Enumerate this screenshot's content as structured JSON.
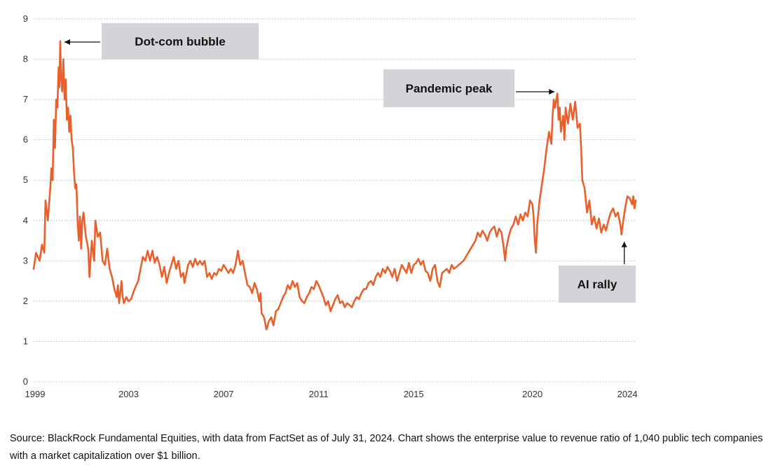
{
  "chart_data": {
    "type": "line",
    "title": "",
    "xlabel": "",
    "ylabel": "",
    "xlim": [
      1999,
      2024.35
    ],
    "ylim": [
      0,
      9
    ],
    "grid": true,
    "x_ticks": [
      1999,
      2003,
      2007,
      2011,
      2015,
      2020,
      2024
    ],
    "x_tick_labels": [
      "1999",
      "2003",
      "2007",
      "2011",
      "2015",
      "2020",
      "2024"
    ],
    "y_ticks": [
      0,
      1,
      2,
      3,
      4,
      5,
      6,
      7,
      8,
      9
    ],
    "y_tick_labels": [
      "0",
      "1",
      "2",
      "3",
      "4",
      "5",
      "6",
      "7",
      "8",
      "9"
    ],
    "color": "#e8612c",
    "series": [
      {
        "values": [
          [
            1999.0,
            2.8
          ],
          [
            1999.1,
            3.2
          ],
          [
            1999.25,
            3.0
          ],
          [
            1999.35,
            3.4
          ],
          [
            1999.45,
            3.2
          ],
          [
            1999.5,
            4.5
          ],
          [
            1999.6,
            4.0
          ],
          [
            1999.7,
            4.8
          ],
          [
            1999.75,
            5.3
          ],
          [
            1999.8,
            5.0
          ],
          [
            1999.85,
            6.5
          ],
          [
            1999.9,
            5.8
          ],
          [
            1999.95,
            7.0
          ],
          [
            2000.0,
            6.8
          ],
          [
            2000.05,
            7.8
          ],
          [
            2000.08,
            7.3
          ],
          [
            2000.12,
            8.45
          ],
          [
            2000.15,
            7.6
          ],
          [
            2000.2,
            7.2
          ],
          [
            2000.25,
            8.0
          ],
          [
            2000.3,
            7.0
          ],
          [
            2000.35,
            7.5
          ],
          [
            2000.4,
            6.5
          ],
          [
            2000.45,
            6.8
          ],
          [
            2000.5,
            6.2
          ],
          [
            2000.55,
            6.6
          ],
          [
            2000.6,
            6.0
          ],
          [
            2000.65,
            5.8
          ],
          [
            2000.7,
            5.2
          ],
          [
            2000.75,
            4.8
          ],
          [
            2000.8,
            4.9
          ],
          [
            2000.85,
            4.0
          ],
          [
            2000.9,
            3.5
          ],
          [
            2000.95,
            4.1
          ],
          [
            2001.0,
            3.3
          ],
          [
            2001.05,
            4.0
          ],
          [
            2001.1,
            4.2
          ],
          [
            2001.2,
            3.6
          ],
          [
            2001.3,
            3.3
          ],
          [
            2001.35,
            2.6
          ],
          [
            2001.45,
            3.5
          ],
          [
            2001.55,
            3.0
          ],
          [
            2001.6,
            4.0
          ],
          [
            2001.7,
            3.6
          ],
          [
            2001.8,
            3.7
          ],
          [
            2001.9,
            3.0
          ],
          [
            2002.0,
            2.9
          ],
          [
            2002.1,
            3.3
          ],
          [
            2002.2,
            2.8
          ],
          [
            2002.3,
            2.6
          ],
          [
            2002.4,
            2.3
          ],
          [
            2002.5,
            2.1
          ],
          [
            2002.55,
            2.4
          ],
          [
            2002.6,
            1.95
          ],
          [
            2002.7,
            2.5
          ],
          [
            2002.75,
            2.1
          ],
          [
            2002.8,
            1.95
          ],
          [
            2002.9,
            2.1
          ],
          [
            2003.0,
            2.0
          ],
          [
            2003.1,
            2.05
          ],
          [
            2003.25,
            2.3
          ],
          [
            2003.4,
            2.5
          ],
          [
            2003.5,
            2.8
          ],
          [
            2003.6,
            3.1
          ],
          [
            2003.7,
            3.0
          ],
          [
            2003.8,
            3.25
          ],
          [
            2003.9,
            3.0
          ],
          [
            2004.0,
            3.25
          ],
          [
            2004.1,
            2.95
          ],
          [
            2004.2,
            3.1
          ],
          [
            2004.3,
            2.9
          ],
          [
            2004.4,
            2.6
          ],
          [
            2004.5,
            2.85
          ],
          [
            2004.6,
            2.45
          ],
          [
            2004.7,
            2.7
          ],
          [
            2004.8,
            2.9
          ],
          [
            2004.9,
            3.1
          ],
          [
            2005.0,
            2.8
          ],
          [
            2005.1,
            3.0
          ],
          [
            2005.2,
            2.6
          ],
          [
            2005.3,
            2.7
          ],
          [
            2005.35,
            2.45
          ],
          [
            2005.5,
            2.9
          ],
          [
            2005.6,
            3.0
          ],
          [
            2005.7,
            2.85
          ],
          [
            2005.8,
            3.05
          ],
          [
            2005.9,
            2.9
          ],
          [
            2006.0,
            3.0
          ],
          [
            2006.1,
            2.9
          ],
          [
            2006.2,
            3.0
          ],
          [
            2006.3,
            2.6
          ],
          [
            2006.4,
            2.7
          ],
          [
            2006.5,
            2.55
          ],
          [
            2006.6,
            2.7
          ],
          [
            2006.7,
            2.65
          ],
          [
            2006.8,
            2.8
          ],
          [
            2006.9,
            2.75
          ],
          [
            2007.0,
            2.9
          ],
          [
            2007.1,
            2.8
          ],
          [
            2007.2,
            2.7
          ],
          [
            2007.3,
            2.8
          ],
          [
            2007.4,
            2.7
          ],
          [
            2007.5,
            2.9
          ],
          [
            2007.6,
            3.25
          ],
          [
            2007.7,
            2.9
          ],
          [
            2007.8,
            3.0
          ],
          [
            2007.9,
            2.7
          ],
          [
            2008.0,
            2.4
          ],
          [
            2008.1,
            2.35
          ],
          [
            2008.2,
            2.2
          ],
          [
            2008.3,
            2.45
          ],
          [
            2008.4,
            2.3
          ],
          [
            2008.5,
            2.0
          ],
          [
            2008.55,
            2.2
          ],
          [
            2008.6,
            1.7
          ],
          [
            2008.7,
            1.6
          ],
          [
            2008.8,
            1.3
          ],
          [
            2008.9,
            1.5
          ],
          [
            2009.0,
            1.6
          ],
          [
            2009.1,
            1.4
          ],
          [
            2009.2,
            1.75
          ],
          [
            2009.3,
            1.8
          ],
          [
            2009.4,
            1.95
          ],
          [
            2009.5,
            2.1
          ],
          [
            2009.6,
            2.2
          ],
          [
            2009.7,
            2.4
          ],
          [
            2009.8,
            2.3
          ],
          [
            2009.9,
            2.5
          ],
          [
            2010.0,
            2.35
          ],
          [
            2010.1,
            2.45
          ],
          [
            2010.2,
            2.1
          ],
          [
            2010.3,
            2.0
          ],
          [
            2010.4,
            1.95
          ],
          [
            2010.5,
            2.1
          ],
          [
            2010.6,
            2.2
          ],
          [
            2010.7,
            2.35
          ],
          [
            2010.8,
            2.3
          ],
          [
            2010.9,
            2.5
          ],
          [
            2011.0,
            2.4
          ],
          [
            2011.1,
            2.25
          ],
          [
            2011.2,
            2.1
          ],
          [
            2011.3,
            1.9
          ],
          [
            2011.4,
            2.0
          ],
          [
            2011.5,
            1.75
          ],
          [
            2011.6,
            1.9
          ],
          [
            2011.7,
            2.05
          ],
          [
            2011.8,
            2.15
          ],
          [
            2011.9,
            1.95
          ],
          [
            2012.0,
            2.0
          ],
          [
            2012.1,
            1.85
          ],
          [
            2012.2,
            1.95
          ],
          [
            2012.3,
            1.9
          ],
          [
            2012.4,
            1.85
          ],
          [
            2012.5,
            2.0
          ],
          [
            2012.6,
            2.1
          ],
          [
            2012.7,
            2.05
          ],
          [
            2012.8,
            2.2
          ],
          [
            2012.9,
            2.3
          ],
          [
            2013.0,
            2.3
          ],
          [
            2013.1,
            2.45
          ],
          [
            2013.2,
            2.5
          ],
          [
            2013.3,
            2.4
          ],
          [
            2013.4,
            2.6
          ],
          [
            2013.5,
            2.7
          ],
          [
            2013.6,
            2.6
          ],
          [
            2013.7,
            2.8
          ],
          [
            2013.8,
            2.7
          ],
          [
            2013.9,
            2.85
          ],
          [
            2014.0,
            2.75
          ],
          [
            2014.1,
            2.6
          ],
          [
            2014.2,
            2.8
          ],
          [
            2014.3,
            2.5
          ],
          [
            2014.4,
            2.7
          ],
          [
            2014.5,
            2.9
          ],
          [
            2014.6,
            2.8
          ],
          [
            2014.7,
            2.7
          ],
          [
            2014.8,
            2.95
          ],
          [
            2014.9,
            2.7
          ],
          [
            2015.0,
            2.9
          ],
          [
            2015.1,
            2.95
          ],
          [
            2015.2,
            3.05
          ],
          [
            2015.3,
            2.9
          ],
          [
            2015.4,
            3.0
          ],
          [
            2015.5,
            2.75
          ],
          [
            2015.6,
            2.7
          ],
          [
            2015.7,
            2.5
          ],
          [
            2015.8,
            2.8
          ],
          [
            2015.9,
            2.9
          ],
          [
            2016.0,
            2.5
          ],
          [
            2016.1,
            2.35
          ],
          [
            2016.2,
            2.7
          ],
          [
            2016.3,
            2.75
          ],
          [
            2016.4,
            2.8
          ],
          [
            2016.5,
            2.7
          ],
          [
            2016.6,
            2.9
          ],
          [
            2016.7,
            2.8
          ],
          [
            2016.8,
            2.85
          ],
          [
            2016.9,
            2.9
          ],
          [
            2017.0,
            2.95
          ],
          [
            2017.1,
            3.0
          ],
          [
            2017.2,
            3.1
          ],
          [
            2017.3,
            3.2
          ],
          [
            2017.4,
            3.3
          ],
          [
            2017.5,
            3.4
          ],
          [
            2017.6,
            3.5
          ],
          [
            2017.7,
            3.7
          ],
          [
            2017.8,
            3.6
          ],
          [
            2017.9,
            3.75
          ],
          [
            2018.0,
            3.65
          ],
          [
            2018.1,
            3.5
          ],
          [
            2018.2,
            3.7
          ],
          [
            2018.3,
            3.8
          ],
          [
            2018.4,
            3.85
          ],
          [
            2018.5,
            3.6
          ],
          [
            2018.6,
            3.8
          ],
          [
            2018.7,
            3.7
          ],
          [
            2018.8,
            3.3
          ],
          [
            2018.85,
            3.0
          ],
          [
            2018.9,
            3.3
          ],
          [
            2019.0,
            3.6
          ],
          [
            2019.1,
            3.8
          ],
          [
            2019.2,
            3.9
          ],
          [
            2019.3,
            4.1
          ],
          [
            2019.4,
            3.9
          ],
          [
            2019.5,
            4.15
          ],
          [
            2019.6,
            4.0
          ],
          [
            2019.7,
            4.2
          ],
          [
            2019.8,
            4.1
          ],
          [
            2019.9,
            4.5
          ],
          [
            2020.0,
            4.4
          ],
          [
            2020.05,
            4.1
          ],
          [
            2020.1,
            3.5
          ],
          [
            2020.15,
            3.2
          ],
          [
            2020.2,
            3.9
          ],
          [
            2020.3,
            4.5
          ],
          [
            2020.4,
            4.9
          ],
          [
            2020.5,
            5.3
          ],
          [
            2020.6,
            5.8
          ],
          [
            2020.7,
            6.2
          ],
          [
            2020.8,
            5.9
          ],
          [
            2020.85,
            6.6
          ],
          [
            2020.9,
            7.0
          ],
          [
            2020.95,
            6.8
          ],
          [
            2021.05,
            7.15
          ],
          [
            2021.1,
            6.5
          ],
          [
            2021.15,
            6.8
          ],
          [
            2021.2,
            6.2
          ],
          [
            2021.3,
            6.6
          ],
          [
            2021.35,
            6.0
          ],
          [
            2021.4,
            6.8
          ],
          [
            2021.5,
            6.4
          ],
          [
            2021.6,
            6.9
          ],
          [
            2021.7,
            6.5
          ],
          [
            2021.8,
            6.95
          ],
          [
            2021.9,
            6.3
          ],
          [
            2022.0,
            6.4
          ],
          [
            2022.05,
            5.8
          ],
          [
            2022.1,
            5.0
          ],
          [
            2022.2,
            4.8
          ],
          [
            2022.3,
            4.2
          ],
          [
            2022.4,
            4.5
          ],
          [
            2022.5,
            3.9
          ],
          [
            2022.6,
            4.1
          ],
          [
            2022.7,
            3.8
          ],
          [
            2022.8,
            4.05
          ],
          [
            2022.9,
            3.7
          ],
          [
            2023.0,
            3.9
          ],
          [
            2023.1,
            3.75
          ],
          [
            2023.2,
            4.0
          ],
          [
            2023.3,
            4.2
          ],
          [
            2023.4,
            4.3
          ],
          [
            2023.5,
            4.1
          ],
          [
            2023.6,
            4.2
          ],
          [
            2023.7,
            3.9
          ],
          [
            2023.75,
            3.65
          ],
          [
            2023.8,
            3.9
          ],
          [
            2023.9,
            4.3
          ],
          [
            2024.0,
            4.6
          ],
          [
            2024.1,
            4.55
          ],
          [
            2024.2,
            4.4
          ],
          [
            2024.25,
            4.6
          ],
          [
            2024.3,
            4.3
          ],
          [
            2024.35,
            4.5
          ]
        ]
      }
    ],
    "annotations": [
      {
        "label": "Dot-com bubble",
        "x": 2000.12,
        "y": 8.45
      },
      {
        "label": "Pandemic peak",
        "x": 2021.05,
        "y": 7.15
      },
      {
        "label": "AI rally",
        "x": 2023.75,
        "y": 3.65
      }
    ]
  },
  "source_note": "Source: BlackRock Fundamental Equities, with data from FactSet as of July 31, 2024. Chart shows the enterprise value to revenue ratio of 1,040 public tech companies with a market capitalization over $1 billion."
}
